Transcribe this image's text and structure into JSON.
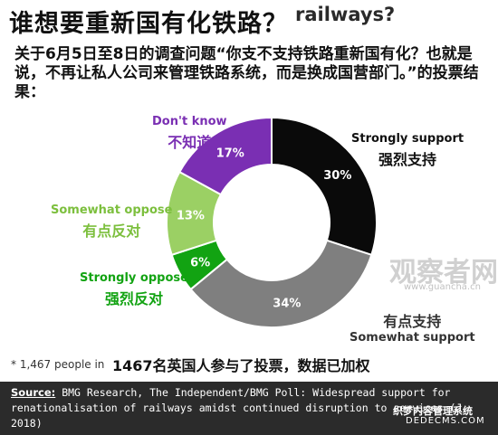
{
  "header": {
    "title_en": "railways?",
    "title_cn": "谁想要重新国有化铁路？",
    "intro": "关于6月5日至8日的调查问题“你支不支持铁路重新国有化？也就是说，不再让私人公司来管理铁路系统，而是换成国营部门。”的投票结果："
  },
  "chart_data": {
    "type": "pie",
    "donut": true,
    "categories": [
      "Strongly support",
      "Somewhat support",
      "Strongly oppose",
      "Somewhat oppose",
      "Don't know"
    ],
    "categories_cn": [
      "强烈支持",
      "有点支持",
      "强烈反对",
      "有点反对",
      "不知道"
    ],
    "values": [
      30,
      34,
      6,
      13,
      17
    ],
    "value_labels": [
      "30%",
      "34%",
      "6%",
      "13%",
      "17%"
    ],
    "colors": [
      "#0a0a0a",
      "#7f7f7f",
      "#12a312",
      "#9bd064",
      "#7a2fb3"
    ],
    "label_colors": [
      "#111111",
      "#333333",
      "#12a312",
      "#7cbf3d",
      "#7a2fb3"
    ],
    "value_label_colors": [
      "#ffffff",
      "#ffffff",
      "#ffffff",
      "#ffffff",
      "#ffffff"
    ]
  },
  "footnote": {
    "en": "* 1,467 people in",
    "cn": "1467名英国人参与了投票，数据已加权"
  },
  "source": {
    "label": "Source:",
    "text": "BMG Research, The Independent/BMG Poll: Widespread support for renationalisation of railways amidst continued disruption to services (J 2018)"
  },
  "watermark": {
    "text": "观察者网",
    "url": "www.guancha.cn",
    "corner": "织梦内容管理系统",
    "corner2": "DEDECMS.COM"
  }
}
